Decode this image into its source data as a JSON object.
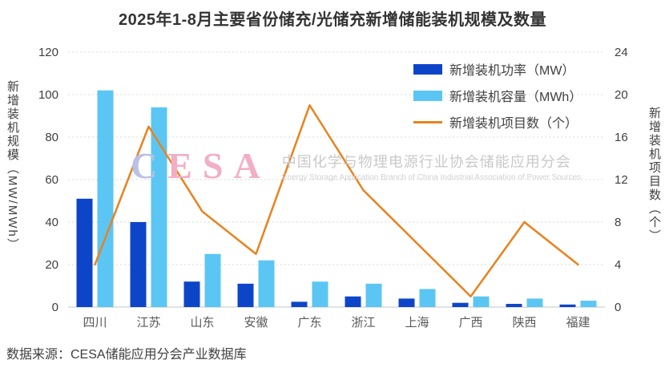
{
  "title": "2025年1-8月主要省份储充/光储充新增储能装机规模及数量",
  "source": "数据来源：CESA储能应用分会产业数据库",
  "watermark": {
    "logo_c": "C",
    "logo_rest": "ESA",
    "cn": "中国化学与物理电源行业协会储能应用分会",
    "en": "Energy Storage Application Branch of China Industrial Association of Power Sources"
  },
  "colors": {
    "power_bar": "#0d45c9",
    "capacity_bar": "#5bc6f3",
    "projects_line": "#e8821e",
    "grid": "#d9d9d9",
    "axis_line": "#c6c6c6"
  },
  "chart_data": {
    "type": "bar",
    "subtype": "grouped-bars-with-line",
    "categories": [
      "四川",
      "江苏",
      "山东",
      "安徽",
      "广东",
      "浙江",
      "上海",
      "广西",
      "陕西",
      "福建"
    ],
    "series": [
      {
        "name": "新增装机功率（MW）",
        "type": "bar",
        "axis": "left",
        "values": [
          51,
          40,
          12,
          11,
          2.5,
          5,
          4,
          2,
          1.5,
          1.2
        ]
      },
      {
        "name": "新增装机容量（MWh）",
        "type": "bar",
        "axis": "left",
        "values": [
          102,
          94,
          25,
          22,
          12,
          11,
          8.5,
          5,
          4,
          3
        ]
      },
      {
        "name": "新增装机项目数（个）",
        "type": "line",
        "axis": "right",
        "values": [
          4,
          17,
          9,
          5,
          19,
          11,
          6,
          1,
          8,
          4
        ]
      }
    ],
    "left_axis": {
      "label": "新增装机规模（MW/MWh）",
      "min": 0,
      "max": 120,
      "step": 20
    },
    "right_axis": {
      "label": "新增装机项目数（个）",
      "min": 0,
      "max": 24,
      "step": 4
    },
    "grid": "dotted-horizontal",
    "legend_position": "top-right"
  }
}
